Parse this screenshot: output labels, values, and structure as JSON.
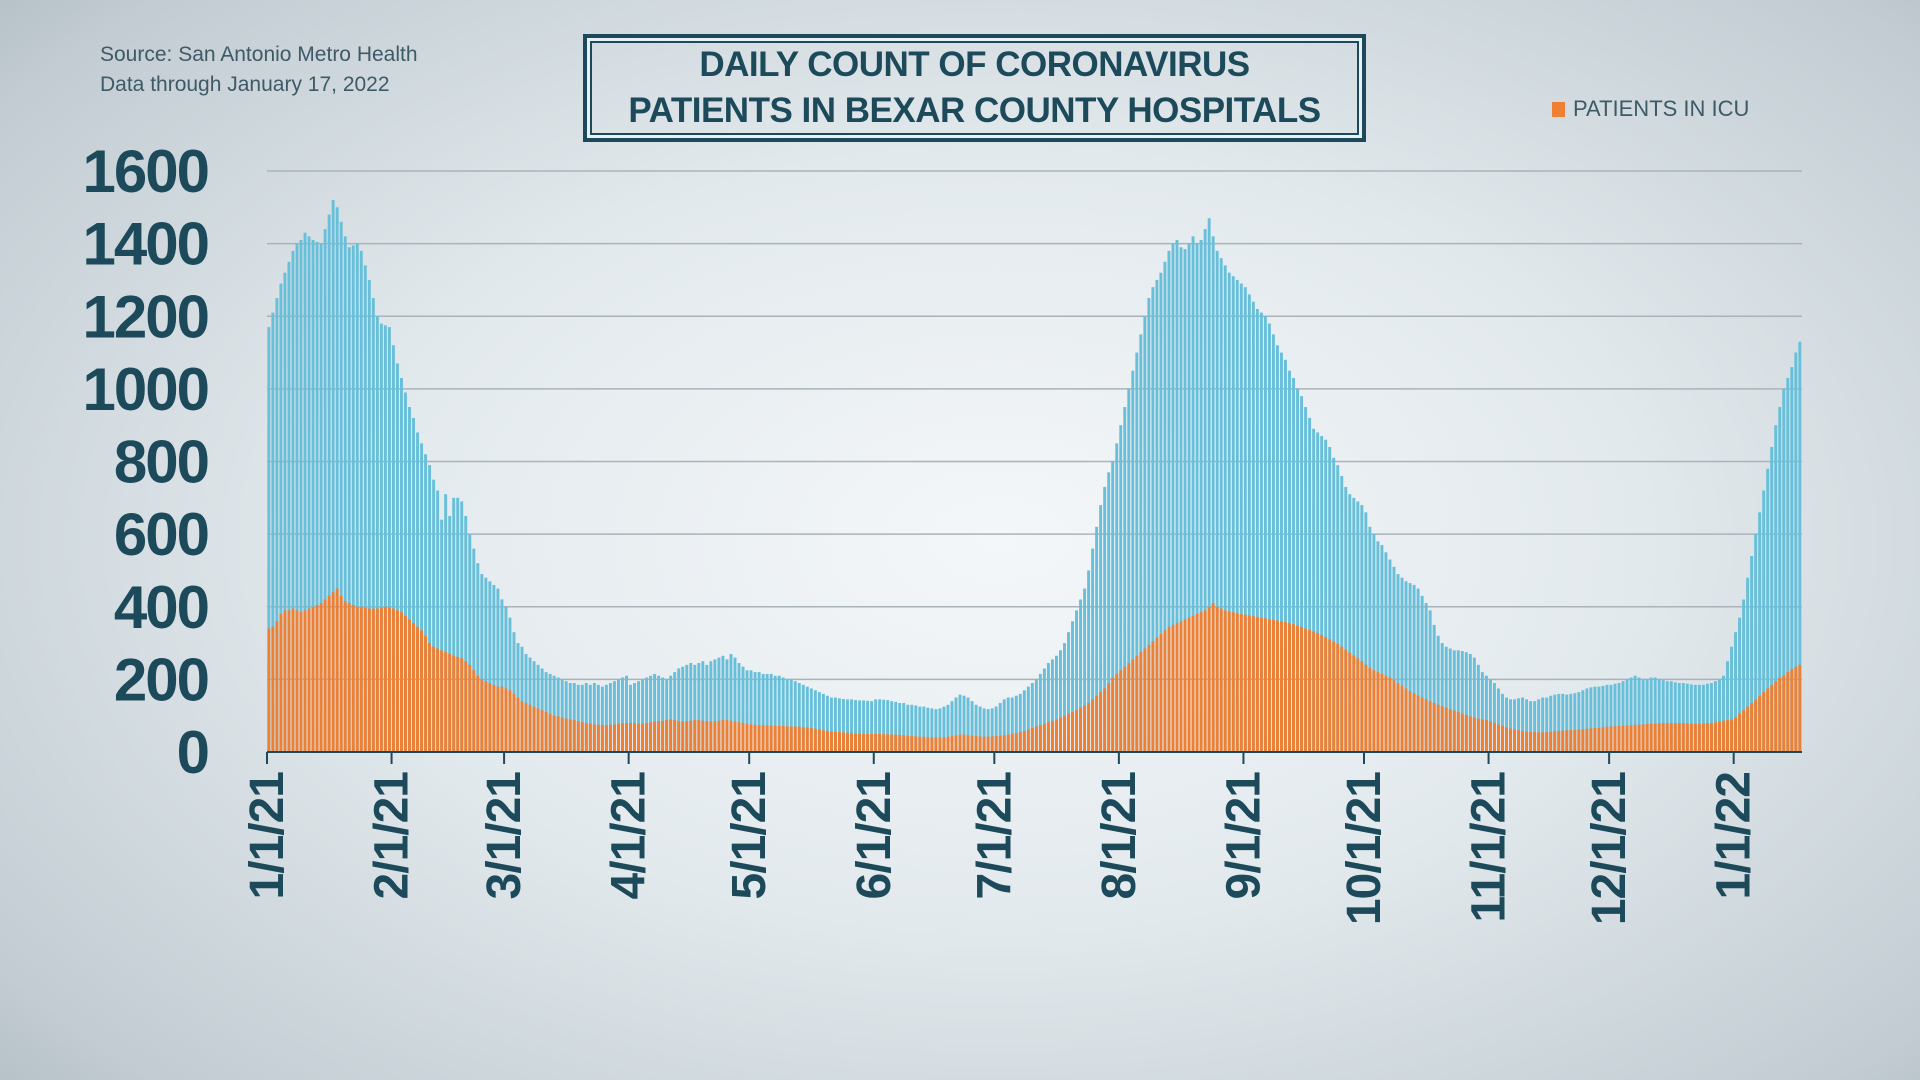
{
  "source": {
    "line1": "Source: San Antonio Metro Health",
    "line2": "Data through January 17, 2022"
  },
  "chart_data": {
    "type": "bar",
    "title": [
      "DAILY COUNT OF CORONAVIRUS",
      "PATIENTS IN BEXAR COUNTY HOSPITALS"
    ],
    "xlabel": "",
    "ylabel": "",
    "x_start": "2021-01-01",
    "x_end": "2022-01-17",
    "ylim": [
      0,
      1600
    ],
    "yticks": [
      "0",
      "200",
      "400",
      "600",
      "800",
      "1000",
      "1200",
      "1400",
      "1600"
    ],
    "xticks": [
      {
        "label": "1/1/21",
        "date": "2021-01-01"
      },
      {
        "label": "2/1/21",
        "date": "2021-02-01"
      },
      {
        "label": "3/1/21",
        "date": "2021-03-01"
      },
      {
        "label": "4/1/21",
        "date": "2021-04-01"
      },
      {
        "label": "5/1/21",
        "date": "2021-05-01"
      },
      {
        "label": "6/1/21",
        "date": "2021-06-01"
      },
      {
        "label": "7/1/21",
        "date": "2021-07-01"
      },
      {
        "label": "8/1/21",
        "date": "2021-08-01"
      },
      {
        "label": "9/1/21",
        "date": "2021-09-01"
      },
      {
        "label": "10/1/21",
        "date": "2021-10-01"
      },
      {
        "label": "11/1/21",
        "date": "2021-11-01"
      },
      {
        "label": "12/1/21",
        "date": "2021-12-01"
      },
      {
        "label": "1/1/22",
        "date": "2022-01-01"
      }
    ],
    "grid": true,
    "legend": {
      "placement": "top-right",
      "entries": [
        {
          "label": "PATIENTS IN ICU",
          "color": "#ee7f33"
        }
      ]
    },
    "colors": {
      "hospitalized": "#68bfd9",
      "icu": "#ee7f33",
      "text": "#1d4a5a"
    },
    "series": [
      {
        "key": "hospitalized",
        "values": [
          1170,
          1210,
          1250,
          1290,
          1320,
          1350,
          1380,
          1400,
          1410,
          1430,
          1420,
          1410,
          1405,
          1400,
          1440,
          1480,
          1520,
          1500,
          1460,
          1420,
          1390,
          1395,
          1400,
          1380,
          1340,
          1300,
          1250,
          1200,
          1180,
          1175,
          1170,
          1120,
          1070,
          1030,
          990,
          950,
          920,
          880,
          850,
          820,
          790,
          750,
          720,
          640,
          710,
          650,
          700,
          700,
          690,
          650,
          600,
          560,
          520,
          490,
          480,
          470,
          460,
          450,
          420,
          400,
          370,
          330,
          300,
          290,
          270,
          260,
          250,
          240,
          230,
          220,
          215,
          210,
          205,
          200,
          195,
          190,
          190,
          185,
          185,
          190,
          185,
          190,
          185,
          180,
          185,
          190,
          195,
          200,
          205,
          210,
          185,
          190,
          195,
          200,
          205,
          210,
          215,
          210,
          205,
          200,
          210,
          220,
          230,
          235,
          240,
          245,
          240,
          245,
          250,
          240,
          250,
          255,
          260,
          265,
          255,
          270,
          260,
          245,
          235,
          225,
          225,
          220,
          220,
          215,
          215,
          215,
          210,
          210,
          205,
          200,
          200,
          195,
          190,
          185,
          180,
          175,
          170,
          165,
          160,
          155,
          150,
          150,
          148,
          146,
          145,
          145,
          143,
          142,
          142,
          141,
          140,
          145,
          145,
          144,
          143,
          140,
          138,
          135,
          135,
          130,
          130,
          128,
          125,
          125,
          122,
          120,
          118,
          120,
          125,
          130,
          140,
          150,
          158,
          155,
          150,
          140,
          130,
          125,
          120,
          118,
          120,
          125,
          135,
          145,
          150,
          150,
          155,
          160,
          170,
          180,
          190,
          200,
          215,
          230,
          245,
          255,
          265,
          280,
          300,
          330,
          360,
          390,
          420,
          450,
          500,
          560,
          620,
          680,
          730,
          770,
          800,
          850,
          900,
          950,
          1000,
          1050,
          1100,
          1150,
          1200,
          1250,
          1280,
          1300,
          1320,
          1350,
          1380,
          1400,
          1410,
          1390,
          1385,
          1400,
          1420,
          1400,
          1410,
          1440,
          1470,
          1420,
          1380,
          1360,
          1340,
          1320,
          1310,
          1300,
          1290,
          1280,
          1260,
          1240,
          1220,
          1210,
          1200,
          1180,
          1150,
          1120,
          1100,
          1080,
          1050,
          1030,
          1000,
          980,
          950,
          920,
          890,
          880,
          870,
          860,
          840,
          810,
          790,
          760,
          730,
          710,
          700,
          690,
          680,
          660,
          620,
          600,
          580,
          570,
          550,
          530,
          510,
          490,
          480,
          470,
          465,
          460,
          450,
          430,
          410,
          390,
          350,
          320,
          300,
          290,
          285,
          280,
          280,
          278,
          275,
          270,
          260,
          240,
          220,
          210,
          200,
          190,
          175,
          160,
          150,
          145,
          145,
          148,
          150,
          145,
          140,
          140,
          145,
          150,
          150,
          155,
          158,
          160,
          160,
          158,
          160,
          162,
          165,
          170,
          175,
          178,
          180,
          180,
          182,
          185,
          185,
          188,
          190,
          195,
          200,
          205,
          210,
          205,
          200,
          200,
          205,
          205,
          200,
          198,
          195,
          195,
          192,
          190,
          190,
          188,
          186,
          185,
          185,
          185,
          188,
          190,
          195,
          200,
          210,
          250,
          290,
          330,
          370,
          420,
          480,
          540,
          600,
          660,
          720,
          780,
          840,
          900,
          950,
          1000,
          1030,
          1060,
          1100,
          1130
        ]
      },
      {
        "key": "icu",
        "name": "PATIENTS IN ICU",
        "values": [
          340,
          345,
          360,
          380,
          390,
          390,
          395,
          390,
          385,
          390,
          395,
          400,
          405,
          410,
          420,
          430,
          440,
          450,
          430,
          415,
          410,
          405,
          400,
          400,
          398,
          395,
          395,
          395,
          398,
          400,
          398,
          395,
          390,
          385,
          375,
          365,
          355,
          345,
          335,
          320,
          300,
          290,
          285,
          280,
          275,
          270,
          265,
          262,
          258,
          250,
          240,
          225,
          210,
          200,
          195,
          190,
          185,
          180,
          180,
          175,
          170,
          160,
          150,
          140,
          135,
          130,
          125,
          120,
          115,
          110,
          105,
          100,
          98,
          95,
          92,
          90,
          88,
          85,
          82,
          80,
          78,
          76,
          75,
          75,
          74,
          75,
          76,
          78,
          80,
          80,
          80,
          80,
          78,
          78,
          80,
          82,
          84,
          85,
          86,
          88,
          90,
          88,
          85,
          84,
          85,
          86,
          88,
          88,
          86,
          85,
          84,
          85,
          86,
          88,
          88,
          86,
          84,
          82,
          80,
          78,
          76,
          75,
          74,
          74,
          73,
          73,
          72,
          72,
          72,
          71,
          70,
          70,
          70,
          68,
          68,
          66,
          64,
          62,
          60,
          58,
          57,
          56,
          55,
          54,
          53,
          52,
          51,
          51,
          50,
          50,
          50,
          50,
          50,
          49,
          49,
          48,
          48,
          47,
          46,
          45,
          44,
          43,
          42,
          42,
          41,
          40,
          40,
          40,
          41,
          42,
          44,
          46,
          48,
          48,
          46,
          45,
          44,
          43,
          42,
          42,
          43,
          44,
          45,
          46,
          48,
          50,
          52,
          55,
          58,
          62,
          66,
          70,
          74,
          78,
          82,
          86,
          90,
          95,
          100,
          105,
          110,
          115,
          122,
          128,
          135,
          145,
          155,
          165,
          175,
          190,
          205,
          215,
          225,
          235,
          245,
          255,
          265,
          275,
          285,
          295,
          305,
          315,
          325,
          335,
          345,
          350,
          355,
          360,
          365,
          370,
          375,
          380,
          385,
          390,
          400,
          410,
          400,
          395,
          390,
          388,
          385,
          382,
          380,
          378,
          376,
          374,
          372,
          370,
          368,
          366,
          364,
          362,
          360,
          358,
          355,
          352,
          348,
          344,
          340,
          336,
          332,
          328,
          322,
          316,
          310,
          304,
          298,
          290,
          282,
          274,
          266,
          258,
          250,
          240,
          232,
          225,
          220,
          215,
          210,
          205,
          198,
          190,
          182,
          175,
          168,
          162,
          156,
          150,
          145,
          140,
          135,
          130,
          126,
          122,
          118,
          114,
          110,
          106,
          102,
          98,
          95,
          92,
          90,
          88,
          85,
          80,
          76,
          72,
          68,
          65,
          62,
          60,
          58,
          56,
          55,
          55,
          54,
          54,
          55,
          56,
          57,
          58,
          59,
          60,
          60,
          61,
          62,
          63,
          64,
          65,
          66,
          67,
          68,
          70,
          70,
          71,
          72,
          72,
          73,
          74,
          75,
          75,
          76,
          77,
          78,
          78,
          79,
          80,
          80,
          80,
          80,
          80,
          80,
          79,
          78,
          78,
          78,
          79,
          80,
          80,
          82,
          84,
          86,
          88,
          90,
          95,
          105,
          115,
          125,
          135,
          145,
          155,
          165,
          175,
          185,
          195,
          205,
          210,
          220,
          228,
          235,
          240
        ]
      }
    ]
  }
}
